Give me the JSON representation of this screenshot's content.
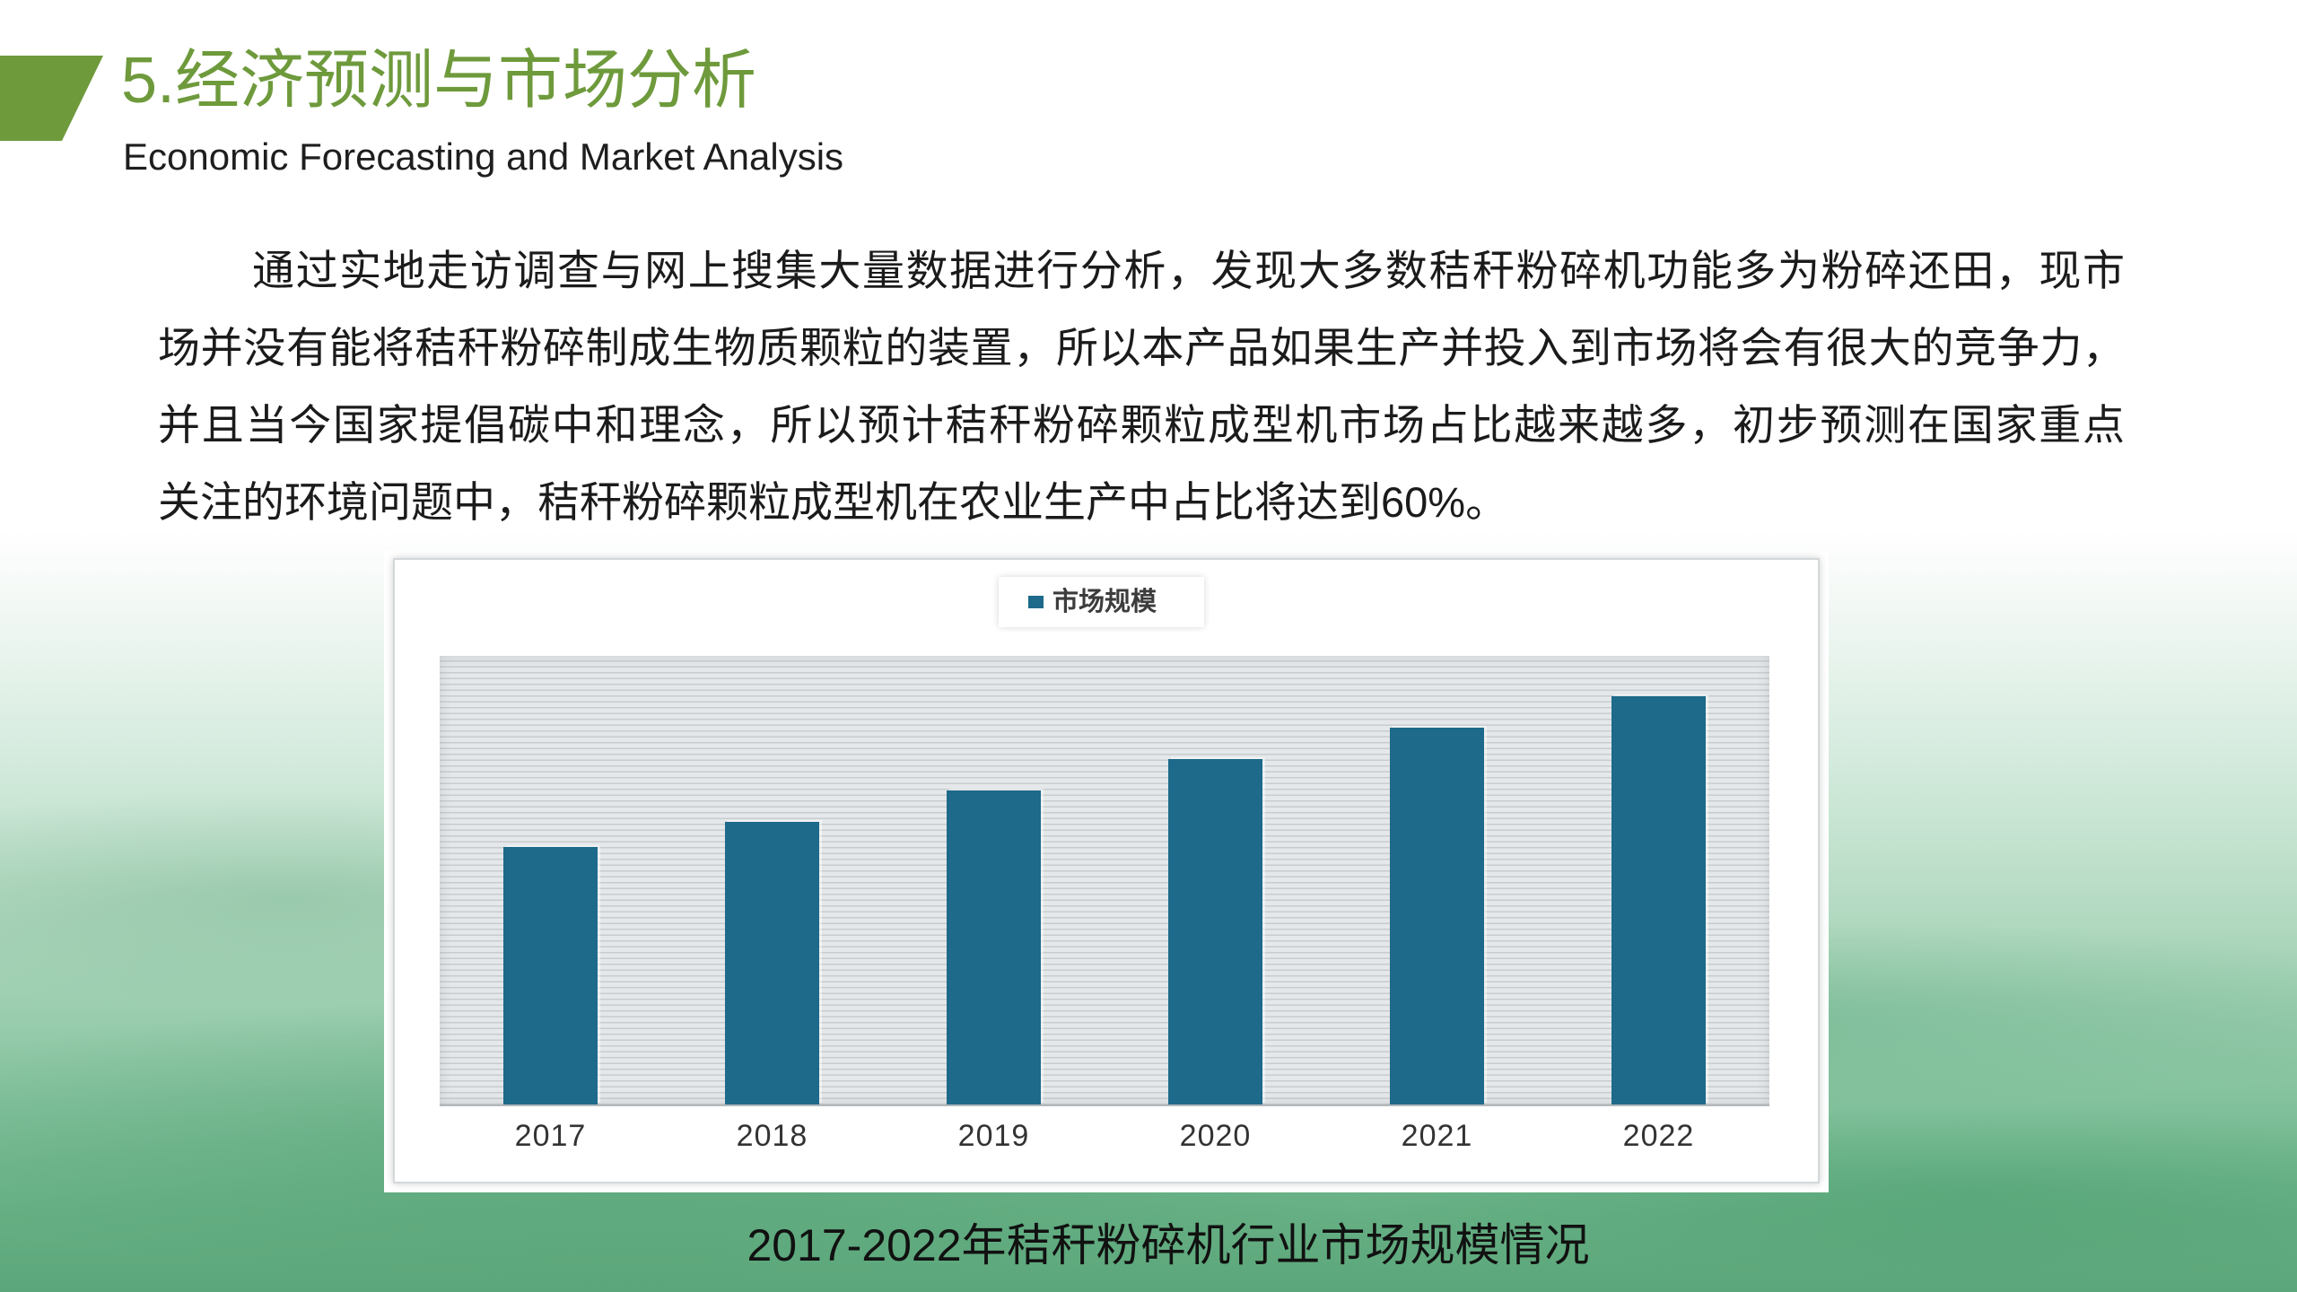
{
  "slide": {
    "title": "5.经济预测与市场分析",
    "subtitle": "Economic Forecasting and Market Analysis",
    "accent_color": "#6e9a3c"
  },
  "body": {
    "lines": [
      "通过实地走访调查与网上搜集大量数据进行分析，发现大多数秸秆粉碎机功能多为粉碎还田，现市",
      "场并没有能将秸秆粉碎制成生物质颗粒的装置，所以本产品如果生产并投入到市场将会有很大的竞争力，",
      "并且当今国家提倡碳中和理念，所以预计秸秆粉碎颗粒成型机市场占比越来越多，初步预测在国家重点",
      "关注的环境问题中，秸秆粉碎颗粒成型机在农业生产中占比将达到60%。"
    ]
  },
  "chart_data": {
    "type": "bar",
    "title": "2017-2022年秸秆粉碎机行业市场规模情况",
    "categories": [
      "2017",
      "2018",
      "2019",
      "2020",
      "2021",
      "2022"
    ],
    "series": [
      {
        "name": "市场规模",
        "values": [
          57.5,
          63,
          70,
          77,
          84,
          91
        ],
        "color": "#1d6a8b"
      }
    ],
    "xlabel": "",
    "ylabel": "",
    "ylim": [
      0,
      100
    ],
    "grid": false,
    "legend": "top-center",
    "plot_background": "#e5e8ea"
  }
}
